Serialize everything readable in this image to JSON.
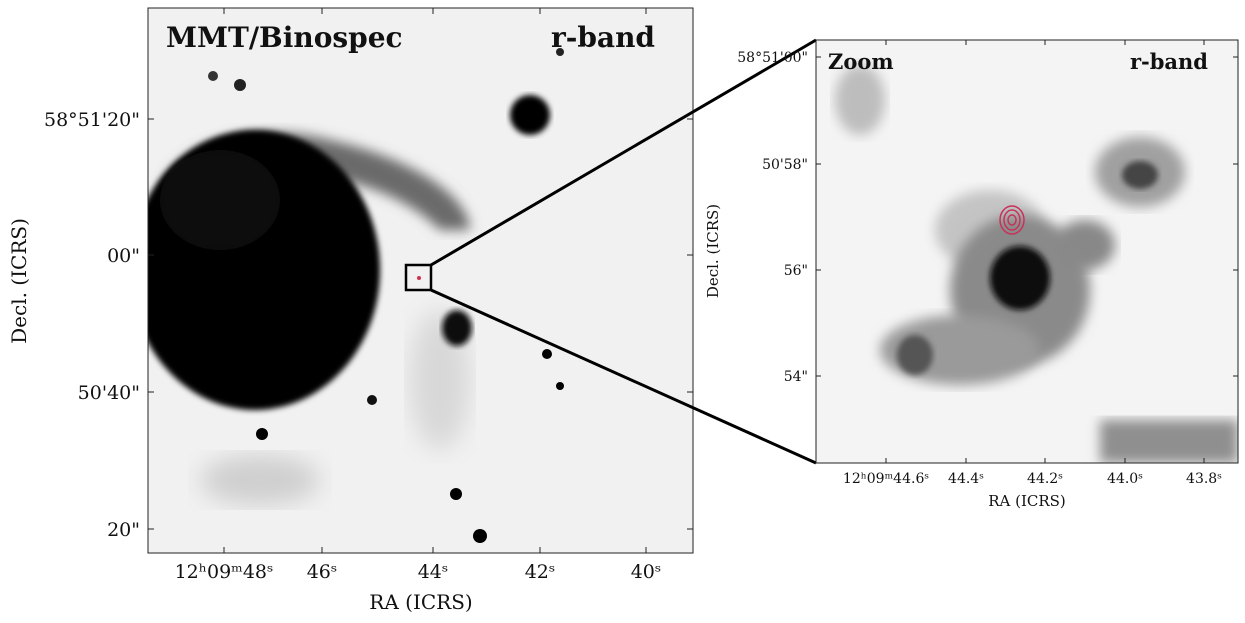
{
  "left_panel": {
    "title": "MMT/Binospec",
    "band": "r-band",
    "x_label": "RA (ICRS)",
    "y_label": "Decl. (ICRS)",
    "x_ticks": [
      "12ʰ09ᵐ48ˢ",
      "46ˢ",
      "44ˢ",
      "42ˢ",
      "40ˢ"
    ],
    "y_ticks": [
      "58°51'20\"",
      "00\"",
      "50'40\"",
      "20\""
    ]
  },
  "right_panel": {
    "title": "Zoom",
    "band": "r-band",
    "x_label": "RA (ICRS)",
    "y_label": "Decl. (ICRS)",
    "x_ticks": [
      "12ʰ09ᵐ44.6ˢ",
      "44.4ˢ",
      "44.2ˢ",
      "44.0ˢ",
      "43.8ˢ"
    ],
    "y_ticks": [
      "58°51'00\"",
      "50'58\"",
      "56\"",
      "54\""
    ]
  }
}
